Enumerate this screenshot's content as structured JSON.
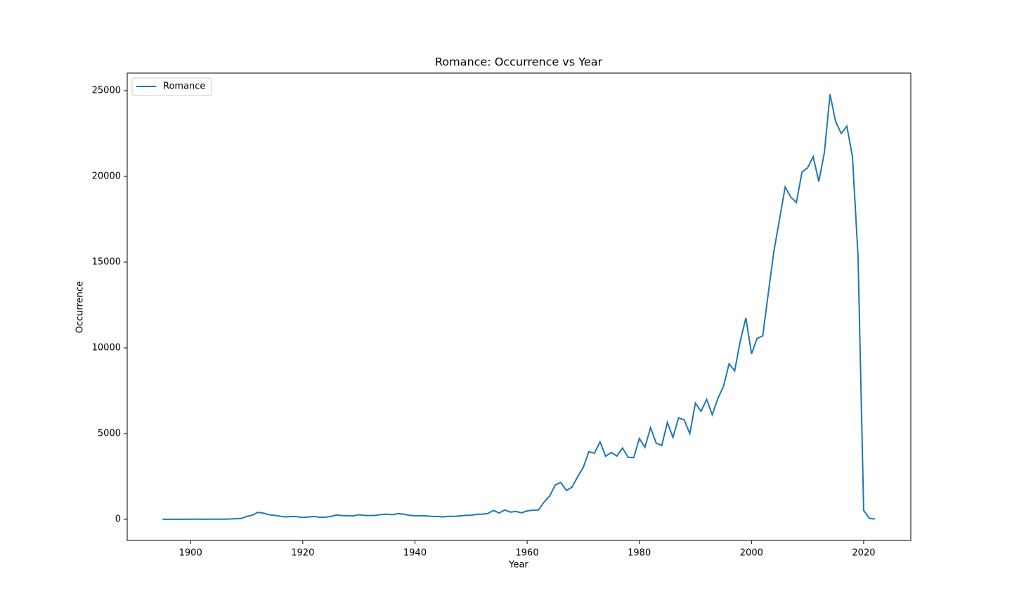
{
  "chart_data": {
    "type": "line",
    "title": "Romance: Occurrence vs Year",
    "x_label": "Year",
    "y_label": "Occurrence",
    "x": [
      1895,
      1896,
      1897,
      1898,
      1899,
      1900,
      1901,
      1902,
      1903,
      1904,
      1905,
      1906,
      1907,
      1908,
      1909,
      1910,
      1911,
      1912,
      1913,
      1914,
      1915,
      1916,
      1917,
      1918,
      1919,
      1920,
      1921,
      1922,
      1923,
      1924,
      1925,
      1926,
      1927,
      1928,
      1929,
      1930,
      1931,
      1932,
      1933,
      1934,
      1935,
      1936,
      1937,
      1938,
      1939,
      1940,
      1941,
      1942,
      1943,
      1944,
      1945,
      1946,
      1947,
      1948,
      1949,
      1950,
      1951,
      1952,
      1953,
      1954,
      1955,
      1956,
      1957,
      1958,
      1959,
      1960,
      1961,
      1962,
      1963,
      1964,
      1965,
      1966,
      1967,
      1968,
      1969,
      1970,
      1971,
      1972,
      1973,
      1974,
      1975,
      1976,
      1977,
      1978,
      1979,
      1980,
      1981,
      1982,
      1983,
      1984,
      1985,
      1986,
      1987,
      1988,
      1989,
      1990,
      1991,
      1992,
      1993,
      1994,
      1995,
      1996,
      1997,
      1998,
      1999,
      2000,
      2001,
      2002,
      2003,
      2004,
      2005,
      2006,
      2007,
      2008,
      2009,
      2010,
      2011,
      2012,
      2013,
      2014,
      2015,
      2016,
      2017,
      2018,
      2019,
      2020,
      2021,
      2022
    ],
    "series": [
      {
        "name": "Romance",
        "color": "#1f77b4",
        "values": [
          5,
          5,
          5,
          5,
          5,
          8,
          8,
          6,
          12,
          10,
          10,
          12,
          20,
          35,
          50,
          170,
          240,
          410,
          360,
          270,
          230,
          180,
          140,
          170,
          160,
          110,
          140,
          170,
          120,
          130,
          170,
          250,
          220,
          210,
          200,
          270,
          230,
          220,
          230,
          280,
          300,
          270,
          330,
          300,
          230,
          210,
          210,
          200,
          170,
          170,
          140,
          180,
          170,
          200,
          230,
          240,
          290,
          300,
          340,
          520,
          370,
          550,
          420,
          460,
          380,
          490,
          530,
          540,
          1000,
          1350,
          2000,
          2150,
          1680,
          1880,
          2480,
          3020,
          3940,
          3860,
          4520,
          3680,
          3900,
          3690,
          4160,
          3620,
          3600,
          4710,
          4200,
          5350,
          4450,
          4300,
          5650,
          4780,
          5920,
          5800,
          5000,
          6780,
          6300,
          7000,
          6100,
          7050,
          7750,
          9070,
          8660,
          10400,
          11750,
          9650,
          10550,
          10700,
          13200,
          15650,
          17500,
          19380,
          18800,
          18480,
          20250,
          20500,
          21150,
          19700,
          21400,
          24780,
          23200,
          22500,
          22930,
          21150,
          15300,
          520,
          60,
          20
        ]
      }
    ],
    "xlim": [
      1888.7,
      2028.4
    ],
    "ylim": [
      -1230,
      26025
    ],
    "xticks": [
      1900,
      1920,
      1940,
      1960,
      1980,
      2000,
      2020
    ],
    "yticks": [
      0,
      5000,
      10000,
      15000,
      20000,
      25000
    ],
    "legend": "upper left"
  }
}
